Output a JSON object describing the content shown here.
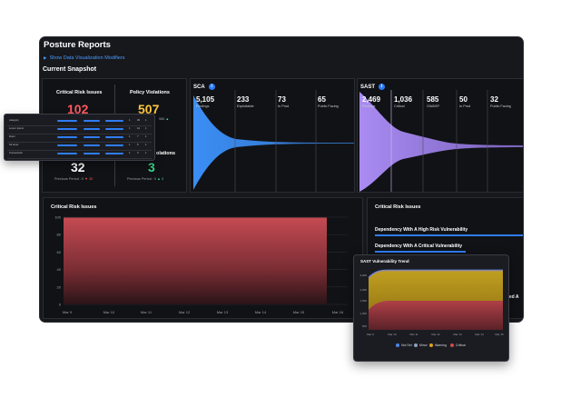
{
  "report": {
    "title": "Posture Reports",
    "modifiers_label": "Show Data Visualization Modifiers",
    "snapshot_label": "Current Snapshot"
  },
  "cards": {
    "critical": {
      "label": "Critical Risk Issues",
      "value": "102",
      "color": "#ff5a5f"
    },
    "policy": {
      "label": "Policy Violations",
      "value": "507",
      "color": "#ffc83d",
      "delta": "586",
      "delta_color": "#39d98a"
    },
    "bottom_left": {
      "value": "32",
      "previous": "Previous Period : 0",
      "delta": "32",
      "delta_color": "#ff5a5f"
    },
    "bottom_right": {
      "label_fragment": "olations",
      "value": "3",
      "color": "#39d98a",
      "previous": "Previous Period : 0",
      "delta": "3",
      "delta_color": "#39d98a"
    }
  },
  "sca": {
    "title": "SCA",
    "color": "#3b8ef5",
    "stats": [
      {
        "num": "5,105",
        "label": "Findings"
      },
      {
        "num": "233",
        "label": "Exploitable"
      },
      {
        "num": "73",
        "label": "In Prod"
      },
      {
        "num": "65",
        "label": "Public Facing"
      }
    ]
  },
  "sast": {
    "title": "SAST",
    "color": "#a98bf2",
    "stats": [
      {
        "num": "2,469",
        "label": "Findings"
      },
      {
        "num": "1,036",
        "label": "Critical"
      },
      {
        "num": "585",
        "label": "OWASP"
      },
      {
        "num": "50",
        "label": "In Prod"
      },
      {
        "num": "32",
        "label": "Public Facing"
      }
    ]
  },
  "critical_chart": {
    "title": "Critical Risk Issues",
    "color": "#c44a52",
    "y_ticks": [
      "100",
      "80",
      "60",
      "40",
      "20",
      "0"
    ],
    "x_ticks": [
      "Mar 9",
      "Mar 10",
      "Mar 11",
      "Mar 12",
      "Mar 13",
      "Mar 14",
      "Mar 15",
      "Mar 16"
    ]
  },
  "right_panel": {
    "title": "Critical Risk Issues",
    "rows": [
      "Dependency With A High Risk Vulnerability",
      "Dependency With A Critical Vulnerability"
    ],
    "partial_text": "ized A"
  },
  "trend": {
    "title": "SAST Vulnerability Trend",
    "y_ticks": [
      "3,000",
      "2,000",
      "1,500",
      "1,000",
      "500"
    ],
    "x_ticks": [
      "Mar 9",
      "Mar 10",
      "Mar 11",
      "Mar 12",
      "Mar 13",
      "Mar 14",
      "Mar 15"
    ],
    "legend": [
      {
        "label": "Not Set",
        "color": "#4a86e8"
      },
      {
        "label": "Minor",
        "color": "#8ea0c0"
      },
      {
        "label": "Warning",
        "color": "#e0a020"
      },
      {
        "label": "Critical",
        "color": "#d04a4a"
      }
    ]
  },
  "table_popup": {
    "rows": [
      {
        "name": "category",
        "n1": "1",
        "n2": "30",
        "n3": "1"
      },
      {
        "name": "Lorem ipsum",
        "n1": "1",
        "n2": "12",
        "n3": "1"
      },
      {
        "name": "Dolor",
        "n1": "1",
        "n2": "7",
        "n3": "1"
      },
      {
        "name": "Sit amet",
        "n1": "1",
        "n2": "5",
        "n3": "1"
      },
      {
        "name": "Consectetur",
        "n1": "1",
        "n2": "3",
        "n3": "1"
      }
    ]
  }
}
